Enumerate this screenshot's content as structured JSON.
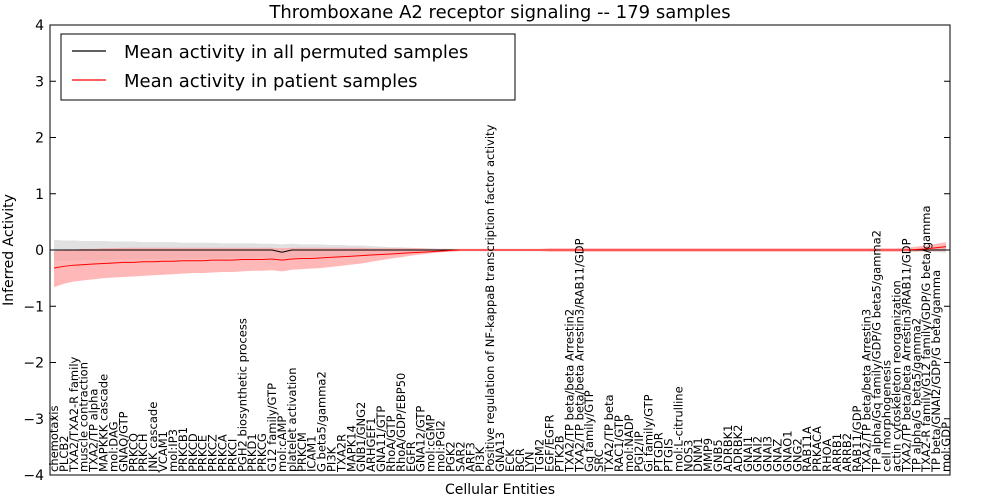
{
  "chart_data": {
    "type": "line",
    "title": "Thromboxane A2 receptor signaling -- 179 samples",
    "xlabel": "Cellular Entities",
    "ylabel": "Inferred Activity",
    "ylim": [
      -4,
      4
    ],
    "yticks": [
      -4,
      -3,
      -2,
      -1,
      0,
      1,
      2,
      3,
      4
    ],
    "grid": false,
    "legend_position": "top-left",
    "legend": [
      {
        "label": "Mean activity in all permuted samples",
        "color": "#000000"
      },
      {
        "label": "Mean activity in patient samples",
        "color": "#ff0000"
      }
    ],
    "categories": [
      "chemotaxis",
      "PLCB2",
      "TXA2/TXA2-R family",
      "muscle contraction",
      "TXA2/TP alpha",
      "MAPKKK cascade",
      "mol:DAG",
      "GNAQ/GTP",
      "PRKCQ",
      "PRKCH",
      "JNK cascade",
      "VCAM1",
      "mol:IP3",
      "PRKCB1",
      "PRKCD",
      "PRKCE",
      "PRKCZ",
      "PRKCA",
      "PRKCI",
      "PGH2 biosynthetic process",
      "PRKD1",
      "PRKCG",
      "G12 family/GTP",
      "mol:cAMP",
      "platelet activation",
      "PRKCM",
      "ICAM1",
      "G beta5/gamma2",
      "PI3K",
      "TXA2R",
      "MAPK14",
      "GNB1/GNG2",
      "ARHGEF1",
      "GNA11/GTP",
      "RhoA/GTP",
      "RhoA/GDP/EBP50",
      "EGFR",
      "GNA12/GTP",
      "mol:cGMP",
      "mol:PGI2",
      "PGK2",
      "SAR2",
      "ARF3",
      "PI3K",
      "Positive regulation of NF-kappaB transcription factor activity",
      "GNA13",
      "ECK",
      "BCR",
      "LYN",
      "TGM2",
      "EGF/EGFR",
      "PTK2B",
      "TXA2/TP beta/beta Arrestin2",
      "TXA2/TP beta/beta Arrestin3/RAB11/GDP",
      "Gq family/GTP",
      "SRC",
      "TXA2/TP beta",
      "RAC1/GTP",
      "mol:NADP",
      "PGI2/IP",
      "Gi family/GTP",
      "PTGDR",
      "PTGIS",
      "mol:L-citrulline",
      "NOS3",
      "DNM1",
      "MMP9",
      "GNB5",
      "ADRBK1",
      "ADRBK2",
      "GNAI1",
      "GNAI2",
      "GNAI3",
      "GNAZ",
      "GNAO1",
      "GNG2",
      "RAB11A",
      "PRKACA",
      "RHOA",
      "ARRB1",
      "ARRB2",
      "RAB11/GDP",
      "TXA2/TP beta/beta Arrestin3",
      "TP alpha/Gq family/GDP/G beta5/gamma2",
      "cell morphogenesis",
      "actin cytoskeleton reorganization",
      "TXA2/TP beta/beta Arrestin3/RAB11/GDP",
      "TP alpha/G beta5/gamma2",
      "TXA2-R family/G12 family/GDP/G beta/gamma",
      "TP beta/GNAI2/GDP/G beta/gamma",
      "mol:GDP"
    ],
    "series": [
      {
        "name": "Mean activity in all permuted samples",
        "values": [
          0.0,
          0.0,
          0.0,
          0.0,
          0.0,
          0.0,
          0.0,
          0.0,
          0.0,
          0.0,
          0.0,
          0.0,
          0.0,
          0.0,
          0.0,
          0.0,
          0.0,
          0.0,
          0.0,
          0.0,
          0.0,
          0.0,
          0.0,
          -0.04,
          0.0,
          0.0,
          0.0,
          0.0,
          0.0,
          0.0,
          0.0,
          0.0,
          0.0,
          0.0,
          0.0,
          0.0,
          0.0,
          0.0,
          0.0,
          0.0,
          0.0,
          0.0,
          0.0,
          0.0,
          0.0,
          0.0,
          0.0,
          0.0,
          0.0,
          0.0,
          0.0,
          0.0,
          0.0,
          0.0,
          0.0,
          0.0,
          0.0,
          0.0,
          0.0,
          0.0,
          0.0,
          0.0,
          0.0,
          0.0,
          0.0,
          0.0,
          0.0,
          0.0,
          0.0,
          0.0,
          0.0,
          0.0,
          0.0,
          0.0,
          0.0,
          0.0,
          0.0,
          0.0,
          0.0,
          0.0,
          0.0,
          0.0,
          0.0,
          0.0,
          0.0,
          0.0,
          0.0,
          0.0,
          0.0,
          0.0,
          0.0
        ],
        "lower": [
          -0.2,
          -0.19,
          -0.19,
          -0.18,
          -0.18,
          -0.18,
          -0.17,
          -0.17,
          -0.17,
          -0.16,
          -0.16,
          -0.16,
          -0.16,
          -0.15,
          -0.15,
          -0.15,
          -0.15,
          -0.14,
          -0.14,
          -0.14,
          -0.14,
          -0.13,
          -0.13,
          -0.16,
          -0.13,
          -0.12,
          -0.12,
          -0.12,
          -0.11,
          -0.11,
          -0.1,
          -0.1,
          -0.09,
          -0.08,
          -0.07,
          -0.06,
          -0.05,
          -0.04,
          -0.03,
          -0.02,
          -0.02,
          -0.02,
          -0.02,
          -0.02,
          -0.02,
          -0.02,
          -0.02,
          -0.02,
          -0.02,
          -0.02,
          -0.02,
          -0.02,
          -0.02,
          -0.02,
          -0.02,
          -0.02,
          -0.02,
          -0.02,
          -0.02,
          -0.02,
          -0.02,
          -0.02,
          -0.02,
          -0.02,
          -0.02,
          -0.02,
          -0.02,
          -0.02,
          -0.02,
          -0.02,
          -0.02,
          -0.02,
          -0.02,
          -0.02,
          -0.02,
          -0.02,
          -0.02,
          -0.02,
          -0.02,
          -0.02,
          -0.02,
          -0.02,
          -0.02,
          -0.02,
          -0.02,
          -0.02,
          -0.02,
          -0.02,
          -0.03,
          -0.04,
          -0.05
        ],
        "upper": [
          0.18,
          0.17,
          0.17,
          0.16,
          0.16,
          0.16,
          0.15,
          0.15,
          0.15,
          0.14,
          0.14,
          0.14,
          0.14,
          0.13,
          0.13,
          0.13,
          0.13,
          0.12,
          0.12,
          0.12,
          0.12,
          0.11,
          0.11,
          0.1,
          0.11,
          0.1,
          0.1,
          0.1,
          0.09,
          0.09,
          0.08,
          0.08,
          0.07,
          0.06,
          0.05,
          0.05,
          0.04,
          0.03,
          0.03,
          0.02,
          0.02,
          0.02,
          0.02,
          0.02,
          0.02,
          0.02,
          0.02,
          0.02,
          0.02,
          0.02,
          0.02,
          0.02,
          0.02,
          0.02,
          0.02,
          0.02,
          0.02,
          0.02,
          0.02,
          0.02,
          0.02,
          0.02,
          0.02,
          0.02,
          0.02,
          0.02,
          0.02,
          0.02,
          0.02,
          0.02,
          0.02,
          0.02,
          0.02,
          0.02,
          0.02,
          0.02,
          0.02,
          0.02,
          0.02,
          0.02,
          0.02,
          0.02,
          0.02,
          0.02,
          0.02,
          0.02,
          0.02,
          0.02,
          0.03,
          0.05,
          0.07
        ]
      },
      {
        "name": "Mean activity in patient samples",
        "values": [
          -0.32,
          -0.29,
          -0.27,
          -0.26,
          -0.25,
          -0.24,
          -0.23,
          -0.22,
          -0.22,
          -0.21,
          -0.21,
          -0.2,
          -0.2,
          -0.19,
          -0.19,
          -0.19,
          -0.18,
          -0.18,
          -0.18,
          -0.17,
          -0.17,
          -0.17,
          -0.16,
          -0.18,
          -0.16,
          -0.15,
          -0.15,
          -0.14,
          -0.13,
          -0.12,
          -0.11,
          -0.1,
          -0.09,
          -0.08,
          -0.07,
          -0.06,
          -0.05,
          -0.04,
          -0.03,
          -0.02,
          -0.01,
          0.0,
          0.0,
          0.0,
          0.0,
          0.0,
          0.0,
          0.0,
          0.0,
          0.0,
          0.0,
          0.0,
          0.0,
          0.0,
          0.0,
          0.0,
          0.0,
          0.0,
          0.0,
          0.0,
          0.0,
          0.0,
          0.0,
          0.0,
          0.0,
          0.0,
          0.0,
          0.0,
          0.0,
          0.0,
          0.0,
          0.0,
          0.0,
          0.0,
          0.0,
          0.0,
          0.0,
          0.0,
          0.0,
          0.0,
          0.0,
          0.0,
          0.0,
          0.0,
          0.0,
          0.0,
          0.0,
          0.01,
          0.02,
          0.04,
          0.06
        ],
        "lower": [
          -0.66,
          -0.6,
          -0.56,
          -0.54,
          -0.52,
          -0.5,
          -0.49,
          -0.48,
          -0.47,
          -0.46,
          -0.45,
          -0.44,
          -0.43,
          -0.42,
          -0.41,
          -0.41,
          -0.4,
          -0.39,
          -0.39,
          -0.38,
          -0.37,
          -0.37,
          -0.36,
          -0.38,
          -0.35,
          -0.34,
          -0.33,
          -0.32,
          -0.3,
          -0.28,
          -0.26,
          -0.24,
          -0.21,
          -0.18,
          -0.15,
          -0.13,
          -0.1,
          -0.08,
          -0.06,
          -0.04,
          -0.03,
          -0.02,
          -0.02,
          -0.02,
          -0.02,
          -0.02,
          -0.02,
          -0.02,
          -0.02,
          -0.02,
          -0.03,
          -0.03,
          -0.03,
          -0.03,
          -0.03,
          -0.03,
          -0.03,
          -0.03,
          -0.03,
          -0.03,
          -0.03,
          -0.03,
          -0.03,
          -0.03,
          -0.03,
          -0.03,
          -0.03,
          -0.03,
          -0.03,
          -0.03,
          -0.03,
          -0.03,
          -0.03,
          -0.03,
          -0.03,
          -0.03,
          -0.03,
          -0.03,
          -0.03,
          -0.03,
          -0.03,
          -0.03,
          -0.03,
          -0.03,
          -0.03,
          -0.03,
          -0.03,
          -0.03,
          -0.02,
          -0.02,
          -0.02
        ],
        "upper": [
          -0.02,
          0.0,
          0.01,
          0.02,
          0.02,
          0.03,
          0.03,
          0.04,
          0.04,
          0.04,
          0.04,
          0.04,
          0.04,
          0.04,
          0.04,
          0.04,
          0.04,
          0.04,
          0.04,
          0.04,
          0.04,
          0.04,
          0.04,
          0.03,
          0.04,
          0.04,
          0.04,
          0.04,
          0.04,
          0.04,
          0.04,
          0.04,
          0.03,
          0.03,
          0.03,
          0.03,
          0.03,
          0.03,
          0.02,
          0.02,
          0.02,
          0.02,
          0.02,
          0.02,
          0.02,
          0.02,
          0.02,
          0.02,
          0.02,
          0.02,
          0.03,
          0.03,
          0.03,
          0.03,
          0.03,
          0.03,
          0.03,
          0.03,
          0.03,
          0.03,
          0.03,
          0.03,
          0.03,
          0.03,
          0.03,
          0.03,
          0.03,
          0.03,
          0.03,
          0.03,
          0.03,
          0.03,
          0.03,
          0.03,
          0.03,
          0.03,
          0.03,
          0.03,
          0.03,
          0.03,
          0.03,
          0.03,
          0.03,
          0.03,
          0.03,
          0.03,
          0.04,
          0.06,
          0.08,
          0.11,
          0.14
        ]
      }
    ]
  },
  "colors": {
    "permuted_line": "#000000",
    "permuted_band": "#c8c8c8",
    "patient_line": "#ff0000",
    "patient_band": "#ffa0a0"
  }
}
